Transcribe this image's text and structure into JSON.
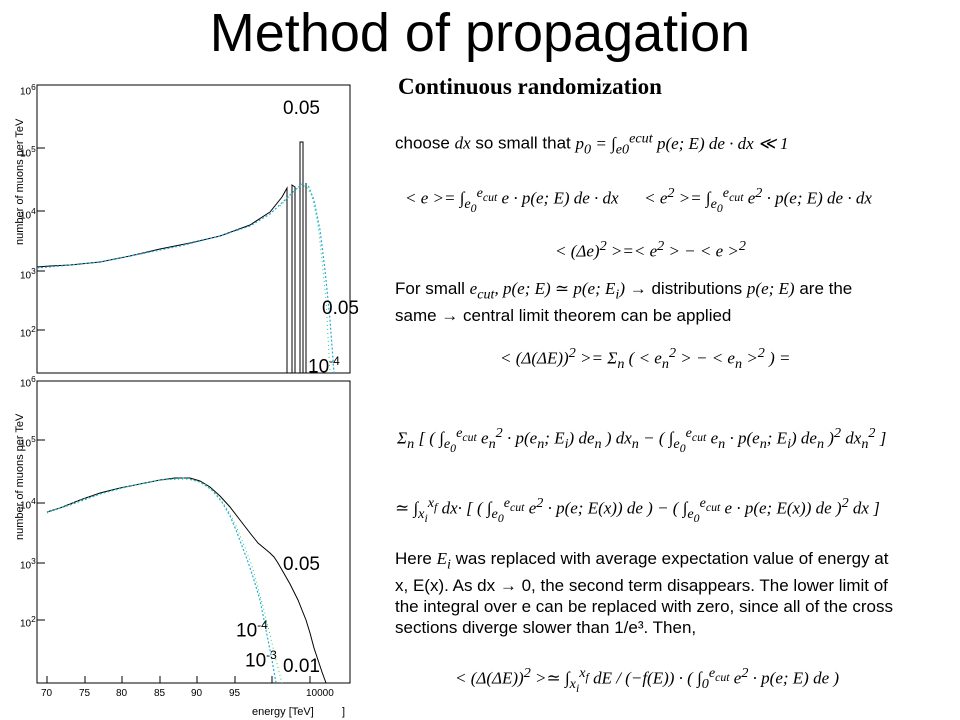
{
  "title": "Method of propagation",
  "plot_top": {
    "ylabel": "number of muons per TeV",
    "yticks": [
      "10 6",
      "10 5",
      "10 4",
      "10 3",
      "10 2"
    ],
    "labels": [
      "0.05",
      "0.05",
      "10-4"
    ]
  },
  "plot_bottom": {
    "ylabel": "number of muons per TeV",
    "yticks": [
      "10 6",
      "10 5",
      "10 4",
      "10 3",
      "10 2"
    ],
    "xticks": [
      "70",
      "75",
      "80",
      "85",
      "90",
      "95",
      "10000"
    ],
    "xlabel": "energy [TeV]",
    "xlabel_bracket": "]",
    "labels": [
      "0.05",
      "10-4",
      "10-3",
      "0.01"
    ]
  },
  "text": {
    "heading": "Continuous randomization",
    "choose_prefix": "choose",
    "choose_mid": "so small that",
    "for_small": "For small",
    "distributions": "→ distributions",
    "are_the": "are the",
    "same": "same → central limit theorem can be applied",
    "here_1": "Here",
    "here_2": "was replaced with average expectation value of energy at",
    "here_3": "x, E(x). As dx → 0, the second term disappears. The lower limit of",
    "here_4": "the integral over e can be replaced with zero, since all of the cross",
    "here_5": "sections diverge slower than 1/e³. Then,"
  }
}
